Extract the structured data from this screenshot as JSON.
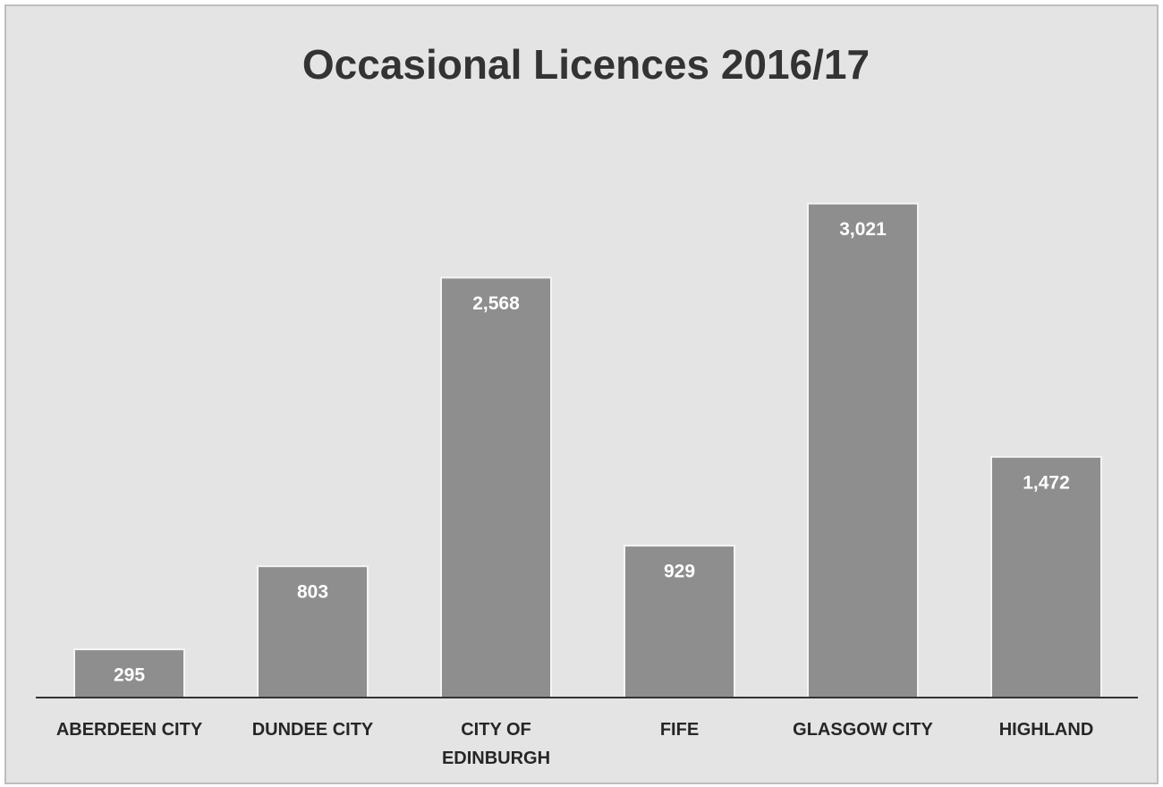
{
  "chart_data": {
    "type": "bar",
    "title": "Occasional Licences 2016/17",
    "categories": [
      "ABERDEEN CITY",
      "DUNDEE CITY",
      "CITY OF EDINBURGH",
      "FIFE",
      "GLASGOW CITY",
      "HIGHLAND"
    ],
    "values": [
      295,
      803,
      2568,
      929,
      3021,
      1472
    ],
    "value_labels": [
      "295",
      "803",
      "2,568",
      "929",
      "3,021",
      "1,472"
    ],
    "color": "#8e8e8e",
    "ylim": [
      0,
      3500
    ]
  }
}
